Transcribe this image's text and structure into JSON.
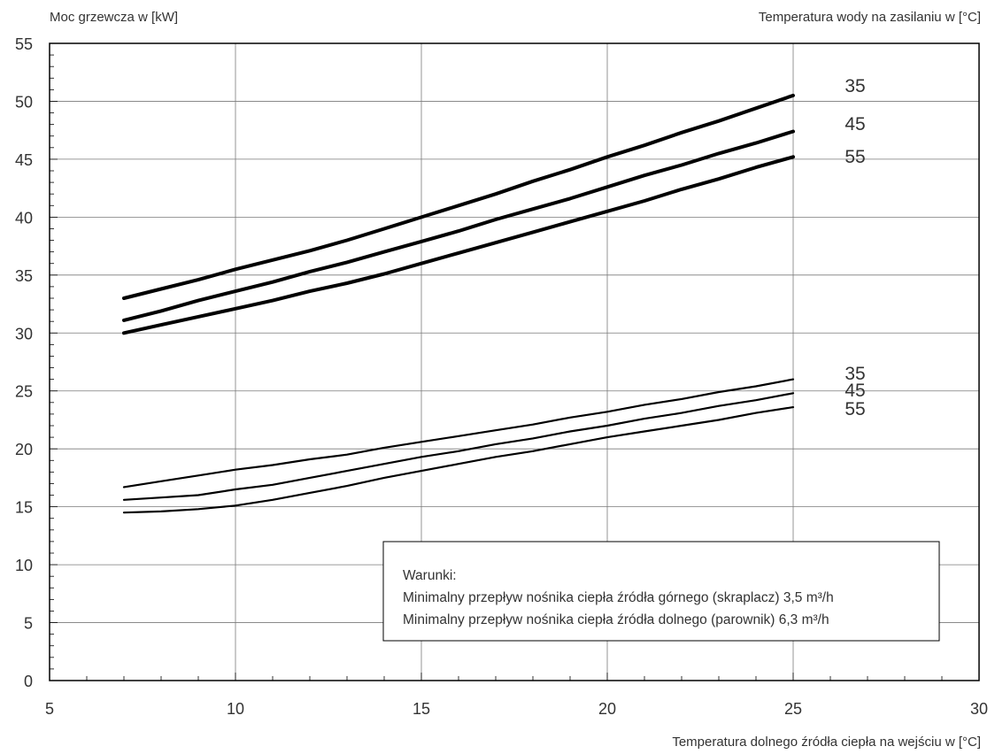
{
  "chart_data": {
    "type": "line",
    "ylabel": "Moc grzewcza w [kW]",
    "xlabel": "Temperatura dolnego źródła ciepła na wejściu w [°C]",
    "legend_title": "Temperatura wody na zasilaniu w [°C]",
    "xlim": [
      5,
      30
    ],
    "ylim": [
      0,
      55
    ],
    "x_major_ticks": [
      5,
      10,
      15,
      20,
      25,
      30
    ],
    "y_major_ticks": [
      0,
      5,
      10,
      15,
      20,
      25,
      30,
      35,
      40,
      45,
      50,
      55
    ],
    "x_tick_labels": [
      "5",
      "10",
      "15",
      "20",
      "25",
      "30"
    ],
    "y_tick_labels": [
      "0",
      "5",
      "10",
      "15",
      "20",
      "25",
      "30",
      "35",
      "40",
      "45",
      "50",
      "55"
    ],
    "grid": true,
    "series": [
      {
        "name": "35",
        "group": "upper",
        "x": [
          7,
          8,
          9,
          10,
          11,
          12,
          13,
          14,
          15,
          16,
          17,
          18,
          19,
          20,
          21,
          22,
          23,
          24,
          25
        ],
        "values": [
          33.0,
          33.8,
          34.6,
          35.5,
          36.3,
          37.1,
          38.0,
          39.0,
          40.0,
          41.0,
          42.0,
          43.1,
          44.1,
          45.2,
          46.2,
          47.3,
          48.3,
          49.4,
          50.5
        ]
      },
      {
        "name": "45",
        "group": "upper",
        "x": [
          7,
          8,
          9,
          10,
          11,
          12,
          13,
          14,
          15,
          16,
          17,
          18,
          19,
          20,
          21,
          22,
          23,
          24,
          25
        ],
        "values": [
          31.1,
          31.9,
          32.8,
          33.6,
          34.4,
          35.3,
          36.1,
          37.0,
          37.9,
          38.8,
          39.8,
          40.7,
          41.6,
          42.6,
          43.6,
          44.5,
          45.5,
          46.4,
          47.4
        ]
      },
      {
        "name": "55",
        "group": "upper",
        "x": [
          7,
          8,
          9,
          10,
          11,
          12,
          13,
          14,
          15,
          16,
          17,
          18,
          19,
          20,
          21,
          22,
          23,
          24,
          25
        ],
        "values": [
          30.0,
          30.7,
          31.4,
          32.1,
          32.8,
          33.6,
          34.3,
          35.1,
          36.0,
          36.9,
          37.8,
          38.7,
          39.6,
          40.5,
          41.4,
          42.4,
          43.3,
          44.3,
          45.2
        ]
      },
      {
        "name": "35",
        "group": "lower",
        "x": [
          7,
          8,
          9,
          10,
          11,
          12,
          13,
          14,
          15,
          16,
          17,
          18,
          19,
          20,
          21,
          22,
          23,
          24,
          25
        ],
        "values": [
          16.7,
          17.2,
          17.7,
          18.2,
          18.6,
          19.1,
          19.5,
          20.1,
          20.6,
          21.1,
          21.6,
          22.1,
          22.7,
          23.2,
          23.8,
          24.3,
          24.9,
          25.4,
          26.0
        ]
      },
      {
        "name": "45",
        "group": "lower",
        "x": [
          7,
          8,
          9,
          10,
          11,
          12,
          13,
          14,
          15,
          16,
          17,
          18,
          19,
          20,
          21,
          22,
          23,
          24,
          25
        ],
        "values": [
          15.6,
          15.8,
          16.0,
          16.5,
          16.9,
          17.5,
          18.1,
          18.7,
          19.3,
          19.8,
          20.4,
          20.9,
          21.5,
          22.0,
          22.6,
          23.1,
          23.7,
          24.2,
          24.8
        ]
      },
      {
        "name": "55",
        "group": "lower",
        "x": [
          7,
          8,
          9,
          9.5,
          10,
          10.5,
          11,
          12,
          13,
          14,
          15,
          16,
          17,
          18,
          19,
          20,
          21,
          22,
          23,
          24,
          25
        ],
        "values": [
          14.5,
          14.6,
          14.8,
          14.95,
          15.1,
          15.35,
          15.6,
          16.2,
          16.8,
          17.5,
          18.1,
          18.7,
          19.3,
          19.8,
          20.4,
          21.0,
          21.5,
          22.0,
          22.5,
          23.1,
          23.6
        ]
      }
    ],
    "annotation": {
      "title": "Warunki:",
      "lines": [
        "Minimalny przepływ nośnika ciepła źródła górnego (skraplacz) 3,5 m³/h",
        "Minimalny przepływ nośnika ciepła źródła dolnego (parownik) 6,3 m³/h"
      ]
    }
  }
}
